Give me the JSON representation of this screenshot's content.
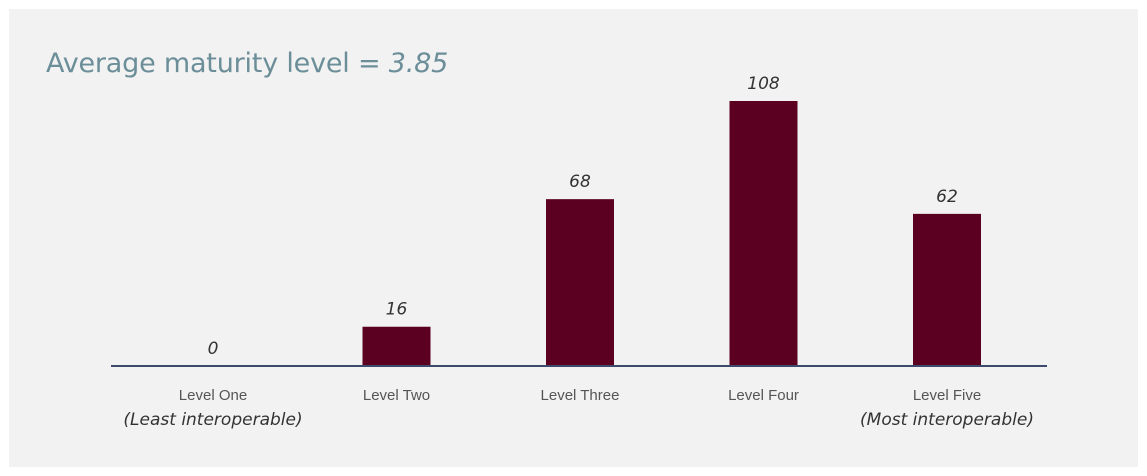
{
  "title": {
    "prefix": "Average maturity level = ",
    "value": "3.85"
  },
  "colors": {
    "bar": "#5b0021",
    "axis": "#3d4a6b",
    "title": "#6b8e99",
    "background": "#f2f2f2"
  },
  "chart_data": {
    "type": "bar",
    "title": "Average maturity level = 3.85",
    "categories": [
      "Level One",
      "Level Two",
      "Level Three",
      "Level Four",
      "Level Five"
    ],
    "sublabels": [
      "(Least interoperable)",
      "",
      "",
      "",
      "(Most interoperable)"
    ],
    "values": [
      0,
      16,
      68,
      108,
      62
    ],
    "ylim": [
      0,
      108
    ],
    "grid": false,
    "legend": "none",
    "xlabel": "",
    "ylabel": ""
  }
}
